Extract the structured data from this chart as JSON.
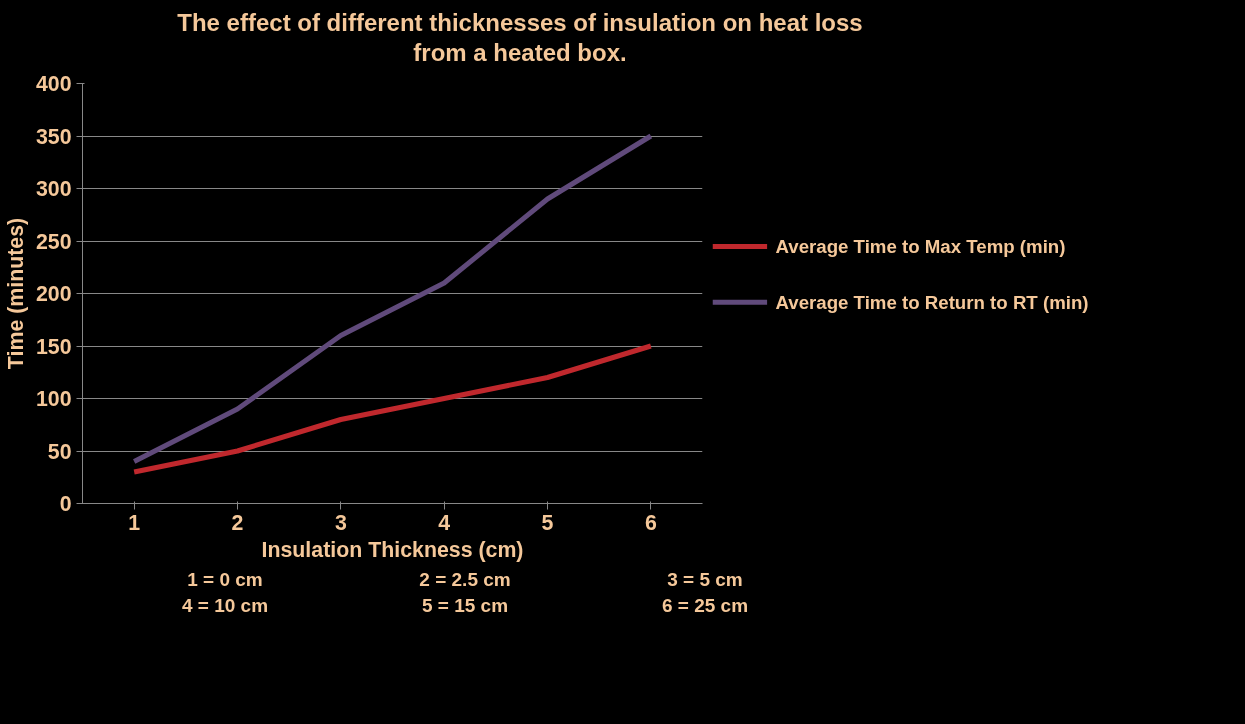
{
  "chart_data": {
    "type": "line",
    "title": "The effect of different thicknesses of insulation on heat loss\nfrom a heated box.",
    "xlabel": "Insulation Thickness (cm)",
    "ylabel": "Time (minutes)",
    "categories": [
      "1",
      "2",
      "3",
      "4",
      "5",
      "6"
    ],
    "series": [
      {
        "name": "Average Time to Max Temp (min)",
        "color": "#c0282d",
        "values": [
          30,
          50,
          80,
          100,
          120,
          150
        ]
      },
      {
        "name": "Average Time to Return to RT (min)",
        "color": "#604a7b",
        "values": [
          40,
          90,
          160,
          210,
          290,
          350
        ]
      }
    ],
    "ylim": [
      0,
      400
    ],
    "yticks": [
      0,
      50,
      100,
      150,
      200,
      250,
      300,
      350,
      400
    ],
    "grid": "y",
    "legend": "right",
    "marker": "none",
    "line_style": "solid",
    "annotations": [
      "1 = 0 cm",
      "2 = 2.5 cm",
      "3 = 5 cm",
      "4 = 10 cm",
      "5 = 15 cm",
      "6 = 25 cm"
    ]
  }
}
